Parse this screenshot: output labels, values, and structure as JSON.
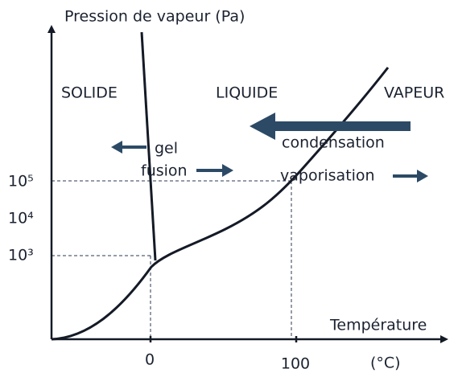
{
  "axes": {
    "y_label": "Pression de vapeur (Pa)",
    "x_label": "Température",
    "x_unit": "(°C)",
    "x_ticks": [
      "0",
      "100"
    ],
    "y_ticks": [
      "10⁵",
      "10⁴",
      "10³"
    ]
  },
  "regions": [
    "SOLIDE",
    "LIQUIDE",
    "VAPEUR"
  ],
  "transitions": {
    "gel": "gel",
    "fusion": "fusion",
    "condensation": "condensation",
    "vaporisation": "vaporisation"
  }
}
